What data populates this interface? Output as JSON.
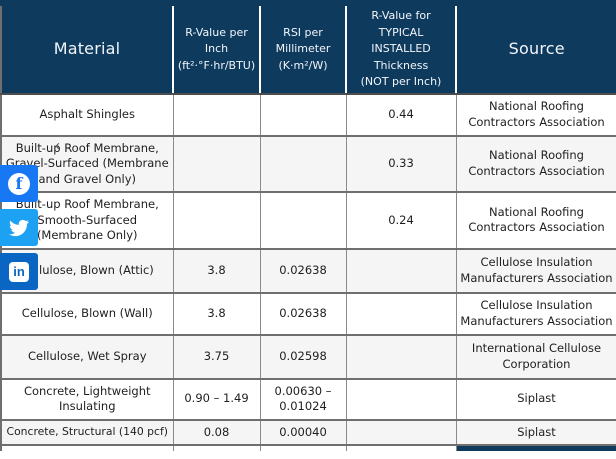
{
  "share_bar": {
    "buttons": [
      {
        "id": "facebook",
        "label": "Share on Facebook",
        "color": "#1877f2",
        "glyph": "f"
      },
      {
        "id": "twitter",
        "label": "Share on Twitter",
        "color": "#1da1f2",
        "glyph": "bird"
      },
      {
        "id": "linkedin",
        "label": "Share on LinkedIn",
        "color": "#0a66c2",
        "glyph": "in"
      }
    ],
    "collapse_glyph": "‹"
  },
  "table": {
    "theme": {
      "header_bg": "#0e3a5e",
      "header_text": "#f2f6fa",
      "row_alt_bg": "#f5f5f5",
      "grid_border": "#6f6f6f"
    },
    "columns": [
      {
        "id": "material",
        "label": "Material",
        "large": true
      },
      {
        "id": "r_per_inch",
        "label": "R-Value per\nInch\n(ft²·°F·hr/BTU)",
        "large": false
      },
      {
        "id": "rsi_per_mm",
        "label": "RSI per\nMillimeter\n(K·m²/W)",
        "large": false
      },
      {
        "id": "r_typical",
        "label": "R-Value for\nTYPICAL\nINSTALLED\nThickness\n(NOT per Inch)",
        "large": false
      },
      {
        "id": "source",
        "label": "Source",
        "large": true
      }
    ],
    "rows": [
      {
        "material": "Asphalt Shingles",
        "r_per_inch": "",
        "rsi_per_mm": "",
        "r_typical": "0.44",
        "source": "National Roofing Contractors Association"
      },
      {
        "material": "Built-up Roof Membrane, Gravel-Surfaced (Membrane and Gravel Only)",
        "r_per_inch": "",
        "rsi_per_mm": "",
        "r_typical": "0.33",
        "source": "National Roofing Contractors Association"
      },
      {
        "material": "Built-up Roof Membrane, Smooth-Surfaced (Membrane Only)",
        "r_per_inch": "",
        "rsi_per_mm": "",
        "r_typical": "0.24",
        "source": "National Roofing Contractors Association"
      },
      {
        "material": "Cellulose, Blown (Attic)",
        "r_per_inch": "3.8",
        "rsi_per_mm": "0.02638",
        "r_typical": "",
        "source": "Cellulose Insulation Manufacturers Association"
      },
      {
        "material": "Cellulose, Blown (Wall)",
        "r_per_inch": "3.8",
        "rsi_per_mm": "0.02638",
        "r_typical": "",
        "source": "Cellulose Insulation Manufacturers Association"
      },
      {
        "material": "Cellulose, Wet Spray",
        "r_per_inch": "3.75",
        "rsi_per_mm": "0.02598",
        "r_typical": "",
        "source": "International Cellulose Corporation"
      },
      {
        "material": "Concrete, Lightweight Insulating",
        "r_per_inch": "0.90 – 1.49",
        "rsi_per_mm": "0.00630 – 0.01024",
        "r_typical": "",
        "source": "Siplast"
      },
      {
        "material": "Concrete, Structural (140 pcf)",
        "r_per_inch": "0.08",
        "rsi_per_mm": "0.00040",
        "r_typical": "",
        "source": "Siplast"
      }
    ],
    "next_row_peek": {
      "navy_cell_column": "source",
      "navy_color": "#0e3a5e"
    }
  }
}
